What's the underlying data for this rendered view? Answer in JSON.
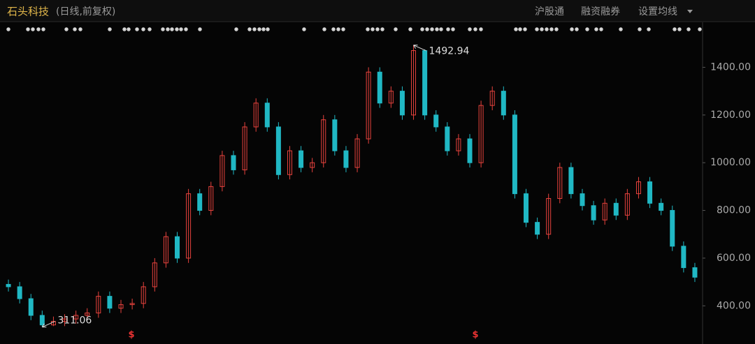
{
  "chart_data": {
    "type": "candlestick",
    "title": "石头科技",
    "subtitle": "(日线,前复权)",
    "toolbar": [
      "沪股通",
      "融资融券",
      "设置均线"
    ],
    "dividend_marker": "$",
    "up_color": "#e8433d",
    "down_color": "#20b8c4",
    "ylim": [
      240,
      1530
    ],
    "yticks": [
      {
        "value": 400,
        "label": "400.00"
      },
      {
        "value": 600,
        "label": "600.00"
      },
      {
        "value": 800,
        "label": "800.00"
      },
      {
        "value": 1000,
        "label": "1000.00"
      },
      {
        "value": 1200,
        "label": "1200.00"
      },
      {
        "value": 1400,
        "label": "1400.00"
      }
    ],
    "open": [
      490,
      480,
      430,
      360,
      320,
      335,
      345,
      360,
      370,
      440,
      390,
      405,
      410,
      480,
      580,
      690,
      600,
      870,
      800,
      900,
      1030,
      970,
      1150,
      1250,
      1150,
      950,
      1050,
      980,
      1000,
      1180,
      1050,
      980,
      1100,
      1380,
      1250,
      1300,
      1200,
      1470,
      1200,
      1150,
      1050,
      1100,
      1000,
      1240,
      1300,
      1200,
      870,
      750,
      700,
      850,
      980,
      870,
      820,
      760,
      830,
      780,
      870,
      920,
      830,
      800,
      650,
      560
    ],
    "close": [
      480,
      430,
      360,
      320,
      335,
      345,
      360,
      370,
      440,
      390,
      405,
      410,
      480,
      580,
      690,
      600,
      870,
      800,
      900,
      1030,
      970,
      1150,
      1250,
      1150,
      950,
      1050,
      980,
      1000,
      1180,
      1050,
      980,
      1100,
      1380,
      1250,
      1300,
      1200,
      1470,
      1200,
      1150,
      1050,
      1100,
      1000,
      1240,
      1300,
      1200,
      870,
      750,
      700,
      850,
      980,
      870,
      820,
      760,
      830,
      780,
      870,
      920,
      830,
      800,
      650,
      560,
      520
    ],
    "high": [
      510,
      500,
      450,
      380,
      355,
      365,
      380,
      390,
      460,
      460,
      425,
      430,
      500,
      600,
      710,
      710,
      890,
      890,
      920,
      1050,
      1050,
      1170,
      1270,
      1270,
      1170,
      1070,
      1070,
      1020,
      1200,
      1200,
      1070,
      1120,
      1400,
      1400,
      1320,
      1320,
      1492.94,
      1475,
      1220,
      1170,
      1120,
      1120,
      1260,
      1320,
      1320,
      1220,
      890,
      770,
      870,
      1000,
      1000,
      890,
      840,
      850,
      850,
      890,
      940,
      940,
      850,
      820,
      670,
      580
    ],
    "low": [
      460,
      410,
      340,
      311.06,
      315,
      315,
      325,
      340,
      350,
      370,
      370,
      385,
      390,
      460,
      560,
      580,
      580,
      780,
      780,
      880,
      950,
      950,
      1130,
      1130,
      930,
      930,
      960,
      960,
      980,
      1030,
      960,
      960,
      1080,
      1230,
      1230,
      1180,
      1180,
      1180,
      1130,
      1030,
      1030,
      980,
      980,
      1220,
      1180,
      850,
      730,
      680,
      680,
      830,
      850,
      800,
      740,
      740,
      760,
      760,
      850,
      810,
      780,
      630,
      540,
      500
    ]
  }
}
